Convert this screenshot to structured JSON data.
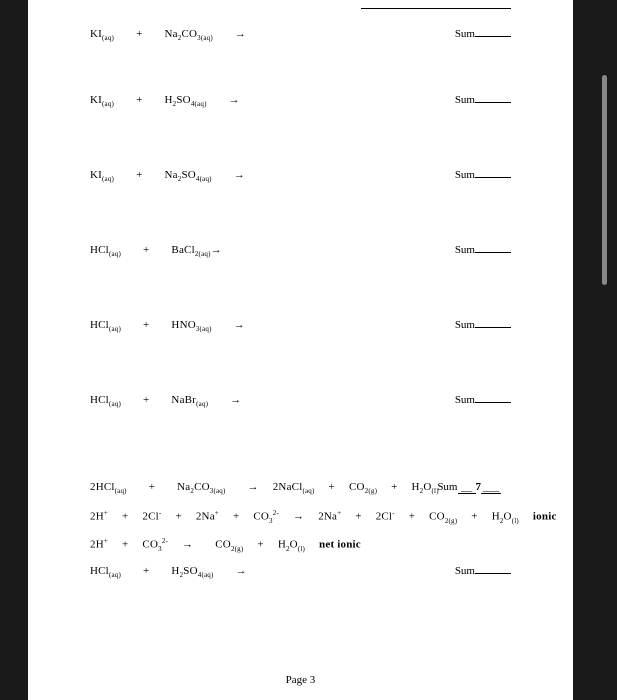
{
  "page": {
    "background_color": "#1a1a1a",
    "paper_color": "#ffffff",
    "font_family": "Times New Roman",
    "font_size_pt": 11,
    "text_color": "#000000",
    "footer": "Page 3"
  },
  "sum_label": "Sum",
  "equations": [
    {
      "left": "KI<sub>(aq)</sub><span class='sp sp2'></span>+<span class='sp sp2'></span>Na<sub>2</sub>CO<sub>3(aq)</sub><span class='sp sp2'></span>→",
      "sum_value": ""
    },
    {
      "left": "KI<sub>(aq)</sub><span class='sp sp2'></span>+<span class='sp sp2'></span>H<sub>2</sub>SO<sub>4(aq)</sub><span class='sp sp2'></span>→",
      "sum_value": ""
    },
    {
      "left": "KI<sub>(aq)</sub><span class='sp sp2'></span>+<span class='sp sp2'></span>Na<sub>2</sub>SO<sub>4(aq)</sub><span class='sp sp2'></span>→",
      "sum_value": ""
    },
    {
      "left": "HCl<sub>(aq)</sub><span class='sp sp2'></span>+<span class='sp sp2'></span>BaCl<sub>2(aq)</sub>→",
      "sum_value": ""
    },
    {
      "left": "HCl<sub>(aq)</sub><span class='sp sp2'></span>+<span class='sp sp2'></span>HNO<sub>3(aq)</sub><span class='sp sp2'></span>→",
      "sum_value": ""
    },
    {
      "left": "HCl<sub>(aq)</sub><span class='sp sp2'></span>+<span class='sp sp2'></span>NaBr<sub>(aq)</sub><span class='sp sp2'></span>→",
      "sum_value": ""
    }
  ],
  "worked": {
    "line1": {
      "eq": "2HCl<sub>(aq)</sub><span class='sp sp2'></span>+<span class='sp sp2'></span>Na<sub>2</sub>CO<sub>3(aq)</sub><span class='sp sp2'></span>→<span class='sp sp1'></span>2NaCl<sub>(aq)</sub><span class='sp sp1'></span>+<span class='sp sp1'></span>CO<sub>2(g)</sub><span class='sp sp1'></span>+<span class='sp sp1'></span>H<sub>2</sub>O<sub>(l)</sub>",
      "sum_value": "7"
    },
    "line2": "2H<sup>+</sup><span class='sp sp1'></span>+<span class='sp sp1'></span>2Cl<sup>-</sup><span class='sp sp1'></span>+<span class='sp sp1'></span>2Na<sup>+</sup><span class='sp sp1'></span>+<span class='sp sp1'></span>CO<sub>3</sub><sup>2-</sup><span class='sp sp1'></span>→<span class='sp sp1'></span>2Na<sup>+</sup><span class='sp sp1'></span>+<span class='sp sp1'></span>2Cl<sup>-</sup><span class='sp sp1'></span>+<span class='sp sp1'></span>CO<sub>2(g)</sub><span class='sp sp1'></span>+<span class='sp sp1'></span>H<sub>2</sub>O<sub>(l)</sub><span class='sp sp1'></span><span class='bold'>ionic</span>",
    "line3": "2H<sup>+</sup><span class='sp sp1'></span>+<span class='sp sp1'></span>CO<sub>3</sub><sup>2-</sup><span class='sp sp1'></span>→<span class='sp sp2'></span>CO<sub>2(g)</sub><span class='sp sp1'></span>+<span class='sp sp1'></span>H<sub>2</sub>O<sub>(l)</sub><span class='sp sp1'></span><span class='bold'>net ionic</span>",
    "line4": {
      "eq": "HCl<sub>(aq)</sub><span class='sp sp2'></span>+<span class='sp sp2'></span>H<sub>2</sub>SO<sub>4(aq)</sub><span class='sp sp2'></span>→",
      "sum_value": ""
    }
  }
}
